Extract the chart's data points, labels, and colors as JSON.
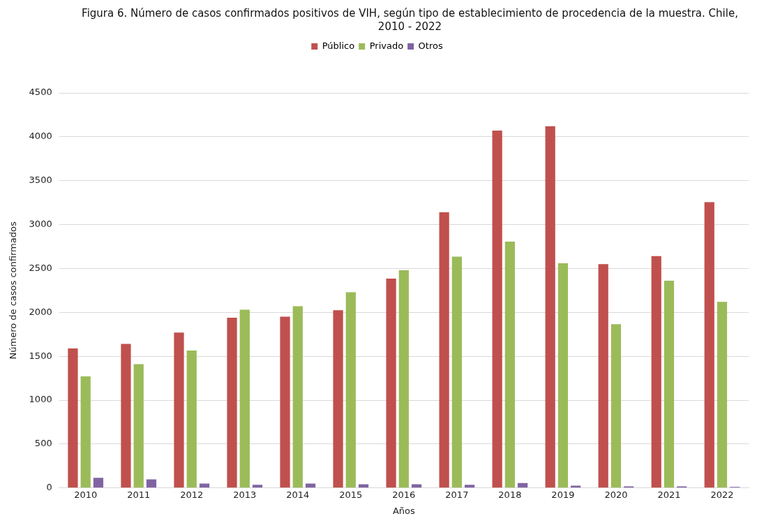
{
  "chart_data": {
    "type": "bar",
    "title": "Figura 6. Número de casos confirmados positivos de VIH, según tipo de establecimiento de procedencia de la muestra. Chile, 2010 - 2022",
    "xlabel": "Años",
    "ylabel": "Número de casos confirmados",
    "categories": [
      "2010",
      "2011",
      "2012",
      "2013",
      "2014",
      "2015",
      "2016",
      "2017",
      "2018",
      "2019",
      "2020",
      "2021",
      "2022"
    ],
    "series": [
      {
        "name": "Público",
        "color": "#c0504d",
        "values": [
          1590,
          1640,
          1770,
          1940,
          1950,
          2025,
          2385,
          3140,
          4070,
          4120,
          2550,
          2640,
          3255
        ]
      },
      {
        "name": "Privado",
        "color": "#9bbb59",
        "values": [
          1270,
          1410,
          1565,
          2030,
          2070,
          2230,
          2480,
          2635,
          2805,
          2560,
          1865,
          2360,
          2120
        ]
      },
      {
        "name": "Otros",
        "color": "#8064a2",
        "values": [
          115,
          97,
          51,
          36,
          51,
          42,
          42,
          36,
          57,
          27,
          18,
          18,
          12
        ]
      }
    ],
    "ylim": [
      0,
      4500
    ],
    "yticks": [
      0,
      500,
      1000,
      1500,
      2000,
      2500,
      3000,
      3500,
      4000,
      4500
    ],
    "grid": "y",
    "legend": "top"
  }
}
